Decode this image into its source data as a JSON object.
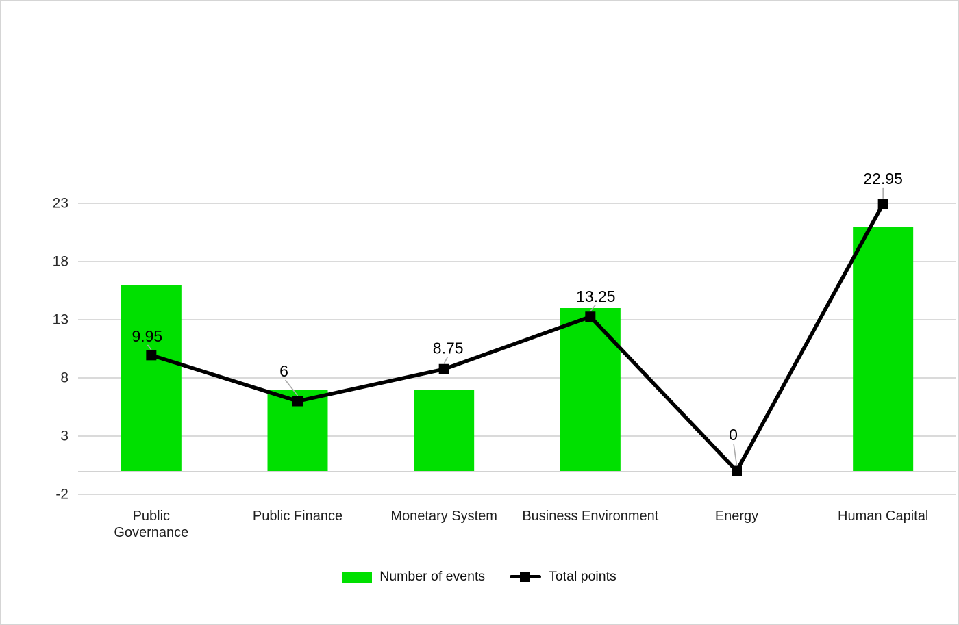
{
  "chart_data": {
    "type": "bar+line combo",
    "title": "",
    "categories": [
      "Public\nGovernance",
      "Public Finance",
      "Monetary System",
      "Business Environment",
      "Energy",
      "Human Capital"
    ],
    "series": [
      {
        "name": "Number of events",
        "type": "bar",
        "color": "#00E000",
        "values": [
          16,
          7,
          7,
          14,
          0,
          21
        ]
      },
      {
        "name": "Total points",
        "type": "line",
        "color": "#000000",
        "values": [
          9.95,
          6,
          8.75,
          13.25,
          0,
          22.95
        ],
        "data_labels": [
          "9.95",
          "6",
          "8.75",
          "13.25",
          "0",
          "22.95"
        ]
      }
    ],
    "y_axis": {
      "min": -2,
      "max": 23,
      "step": 5,
      "ticks": [
        23,
        18,
        13,
        8,
        3,
        -2
      ],
      "baseline": 0
    },
    "x_axis_label": "",
    "y_axis_label": "",
    "grid": true,
    "legend_position": "bottom"
  },
  "legend": {
    "items": [
      {
        "label": "Number of events",
        "color": "#00E000",
        "swatch": "bar"
      },
      {
        "label": "Total points",
        "color": "#000000",
        "swatch": "line-marker"
      }
    ]
  },
  "colors": {
    "bar_green": "#00E000",
    "line_black": "#000000",
    "gridline": "#dadada",
    "baseline": "#d2d2d2",
    "leader_line": "#ababab",
    "tick_text": "#2b2b2b",
    "data_label_text": "#000000",
    "frame_border": "#d5d5d5"
  }
}
